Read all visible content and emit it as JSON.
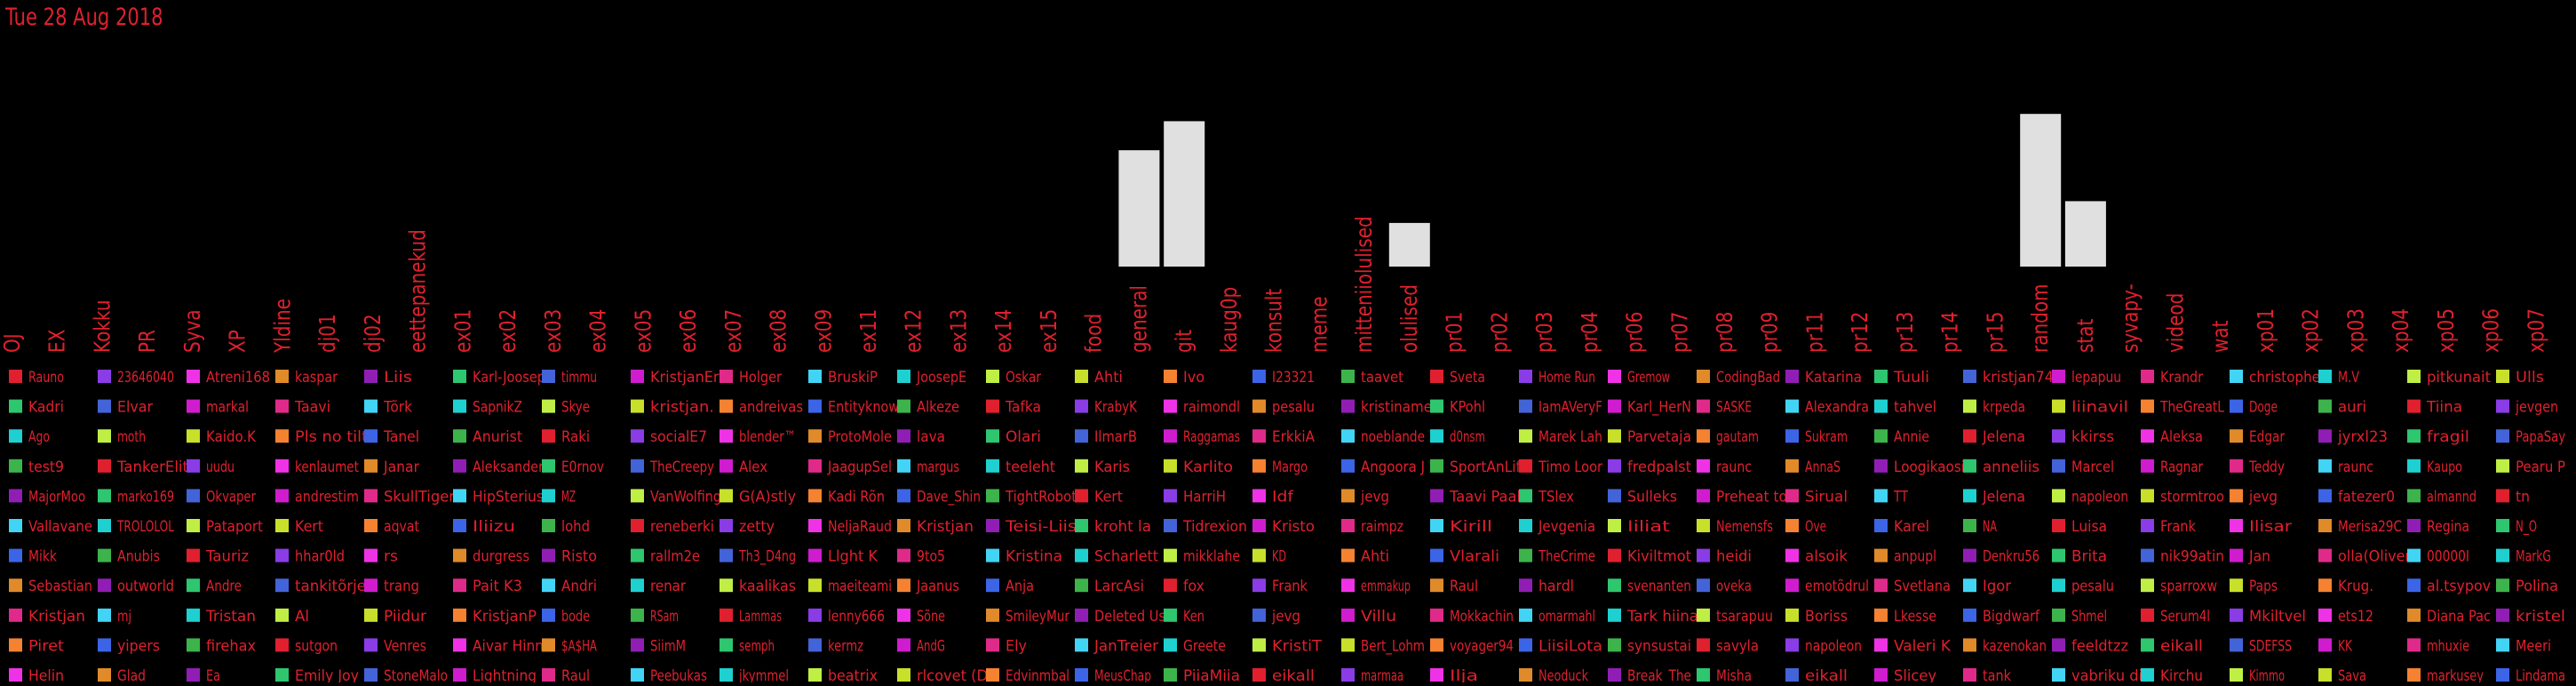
{
  "date_label": "Tue 28 Aug 2018",
  "colors": {
    "background": "#000000",
    "label": "#e0202e",
    "bar": "#e0e0e0"
  },
  "chart_data": {
    "type": "bar",
    "title": "Tue 28 Aug 2018",
    "categories": [
      "OJ",
      "EX",
      "Kokku",
      "PR",
      "Syva",
      "XP",
      "Yldine",
      "dj01",
      "dj02",
      "eettepanekud",
      "ex01",
      "ex02",
      "ex03",
      "ex04",
      "ex05",
      "ex06",
      "ex07",
      "ex08",
      "ex09",
      "ex11",
      "ex12",
      "ex13",
      "ex14",
      "ex15",
      "food",
      "general",
      "git",
      "kaug0p",
      "konsult",
      "meme",
      "mitteniiolulised",
      "olulised",
      "pr01",
      "pr02",
      "pr03",
      "pr04",
      "pr06",
      "pr07",
      "pr08",
      "pr09",
      "pr11",
      "pr12",
      "pr13",
      "pr14",
      "pr15",
      "random",
      "stat",
      "syvapy-",
      "videod",
      "wat",
      "xp01",
      "xp02",
      "xp03",
      "xp04",
      "xp05",
      "xp06",
      "xp07"
    ],
    "values": [
      0,
      0,
      0,
      0,
      0,
      0,
      0,
      0,
      0,
      0,
      0,
      0,
      0,
      0,
      0,
      0,
      0,
      0,
      0,
      0,
      0,
      0,
      0,
      0,
      0,
      16,
      20,
      0,
      0,
      0,
      0,
      6,
      0,
      0,
      0,
      0,
      0,
      0,
      0,
      0,
      0,
      0,
      0,
      0,
      0,
      21,
      9,
      0,
      0,
      0,
      0,
      0,
      0,
      0,
      0,
      0,
      0
    ],
    "ylim": [
      0,
      22
    ],
    "legend_columns": [
      [
        "Rauno",
        "Kadri",
        "Ago",
        "test9",
        "MajorMoo",
        "Vallavane",
        "Mikk",
        "Sebastian",
        "Kristjan",
        "Piret",
        "Helin"
      ],
      [
        "23646040",
        "Elvar",
        "moth",
        "TankerElit",
        "marko169",
        "TROLOLOL",
        "Anubis",
        "outworld",
        "mj",
        "yipers",
        "Glad"
      ],
      [
        "Atreni168",
        "markal",
        "Kaido.K",
        "uudu",
        "Okvaper",
        "Pataport",
        "Tauriz",
        "Andre",
        "Tristan",
        "firehax",
        "Ea"
      ],
      [
        "kaspar",
        "Taavi",
        "Pls no tilt",
        "kenlaumet",
        "andrestim",
        "Kert",
        "hhar0ld",
        "tankitõrje",
        "Al",
        "sutgon",
        "Emily Joy"
      ],
      [
        "Liis",
        "Tõrk",
        "Tanel",
        "Janar",
        "SkullTiger",
        "aqvat",
        "rs",
        "trang",
        "Piidur",
        "Venres",
        "StoneMalo"
      ],
      [
        "Karl-Joosep",
        "SapnikZ",
        "Anurist",
        "Aleksander",
        "HipSterius",
        "Iliizu",
        "durgress",
        "Pait K3",
        "KristjanP",
        "Aivar Hinn",
        "Lightning"
      ],
      [
        "timmu",
        "Skye",
        "Raki",
        "E0rnov",
        "MZ",
        "lohd",
        "Risto",
        "Andri",
        "bode",
        "$A$HA",
        "Raul"
      ],
      [
        "KristjanEri",
        "kristjan.",
        "socialE7",
        "TheCreepy",
        "VanWolfing",
        "reneberki",
        "rallm2e",
        "renar",
        "RSam",
        "SiimM",
        "Peebukas"
      ],
      [
        "Holger",
        "andreivas",
        "blender™",
        "Alex",
        "G(A)stly",
        "zetty",
        "Th3_D4ng",
        "kaalikas",
        "Lammas",
        "semph",
        "jkymmel"
      ],
      [
        "BruskiP",
        "Entityknow",
        "ProtoMole",
        "JaagupSel",
        "Kadi Rõn",
        "NeljaRaud",
        "Llght K",
        "maeiteami",
        "lenny666",
        "kermz",
        "beatrix"
      ],
      [
        "JoosepE",
        "Alkeze",
        "lava",
        "margus",
        "Dave_Shin",
        "Kristjan",
        "9to5",
        "Jaanus",
        "Sõne",
        "AndG",
        "rlcovet (D"
      ],
      [
        "Oskar",
        "Tafka",
        "Olari",
        "teeleht",
        "TightRobot",
        "Teisi-Liis",
        "Kristina",
        "Anja",
        "SmileyMur",
        "Ely",
        "Edvinmbal"
      ],
      [
        "Ahti",
        "KrabyK",
        "IlmarB",
        "Karis",
        "Kert",
        "kroht la",
        "Scharlett",
        "LarcAsi",
        "Deleted Us",
        "JanTreier",
        "MeusChap"
      ],
      [
        "Ivo",
        "raimondl",
        "Raggamas",
        "Karlito",
        "HarriH",
        "Tidrexion",
        "mikklahe",
        "fox",
        "Ken",
        "Greete",
        "PiiaMiia"
      ],
      [
        "I23321",
        "pesalu",
        "ErkkiA",
        "Margo",
        "Idf",
        "Kristo",
        "KD",
        "Frank",
        "jevg",
        "KristiT",
        "eikall"
      ],
      [
        "taavet",
        "kristiname",
        "noeblande",
        "Angoora J",
        "jevg",
        "raimpz",
        "Ahti",
        "emmakup",
        "Villu",
        "Bert_Lohm",
        "marmaa"
      ],
      [
        "Sveta",
        "KPohl",
        "d0nsm",
        "SportAnLif",
        "Taavi Paal",
        "Kirill",
        "Vlarali",
        "Raul",
        "Mokkachin",
        "voyager94",
        "Ilja"
      ],
      [
        "Home Run",
        "IamAVeryF",
        "Marek Lah",
        "Timo Loor",
        "TSlex",
        "Jevgenia",
        "TheCrime",
        "hardl",
        "omarmahl",
        "LiisiLota",
        "Neoduck"
      ],
      [
        "Gremow",
        "Karl_HerN",
        "Parvetaja",
        "fredpalst",
        "Sulleks",
        "Iiliat",
        "Kiviltmot",
        "svenanten",
        "Tark hiina",
        "synsustai",
        "Break_The"
      ],
      [
        "CodingBad",
        "SASKE",
        "gautam",
        "raunc",
        "Preheat to",
        "Nemensfs",
        "heidi",
        "oveka",
        "tsarapuu",
        "savyla",
        "Misha"
      ],
      [
        "Katarina",
        "Alexandra",
        "Sukram",
        "AnnaS",
        "Sirual",
        "Ove",
        "alsoik",
        "emotõdrul",
        "Boriss",
        "napoleon",
        "eikall"
      ],
      [
        "Tuuli",
        "tahvel",
        "Annie",
        "Loogikaosi",
        "TT",
        "Karel",
        "anpupl",
        "Svetlana",
        "Lkesse",
        "Valeri K",
        "Slicey"
      ],
      [
        "kristjan74",
        "krpeda",
        "Jelena",
        "anneliis",
        "Jelena",
        "NA",
        "Denkru56",
        "Igor",
        "Bigdwarf",
        "kazenokan",
        "tank"
      ],
      [
        "lepapuu",
        "liinavil",
        "kkirss",
        "Marcel",
        "napoleon",
        "Luisa",
        "Brita",
        "pesalu",
        "Shmel",
        "feeldtzz",
        "vabriku di"
      ],
      [
        "Krandr",
        "TheGreatL",
        "Aleksa",
        "Ragnar",
        "stormtroo",
        "Frank",
        "nik99atin",
        "sparroxw",
        "Serum4l",
        "eikall",
        "Kirchu"
      ],
      [
        "christophe",
        "Doge",
        "Edgar",
        "Teddy",
        "jevg",
        "Ilisar",
        "Jan",
        "Paps",
        "Mkiltvel",
        "SDEFSS",
        "Kimmo"
      ],
      [
        "M.V",
        "auri",
        "jyrxl23",
        "raunc",
        "fatezer0",
        "Merisa29C",
        "olla(Oliver",
        "Krug.",
        "ets12",
        "KK",
        "Sava"
      ],
      [
        "pitkunait",
        "Tiina",
        "fragil",
        "Kaupo",
        "almannd",
        "Regina",
        "00000I",
        "al.tsypov",
        "Diana Pac",
        "mhuxie",
        "markusey"
      ],
      [
        "Ulls",
        "jevgen",
        "PapaSay",
        "Pearu P",
        "tn",
        "N_O",
        "MarkG",
        "Polina",
        "kristel",
        "Meeri",
        "Lindama"
      ]
    ]
  }
}
